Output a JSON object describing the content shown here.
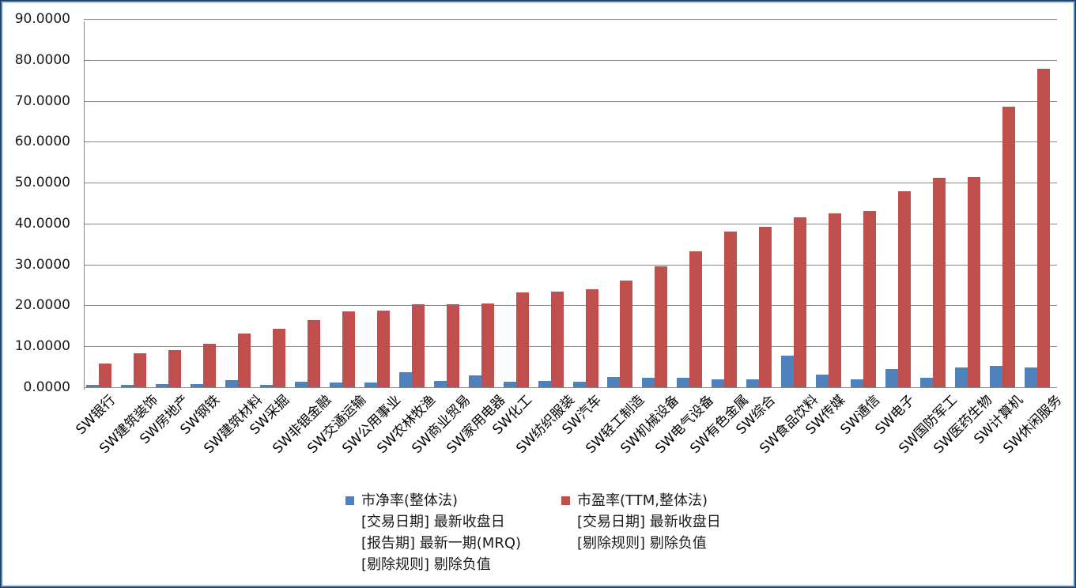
{
  "chart_data": {
    "type": "bar",
    "title": "",
    "xlabel": "",
    "ylabel": "",
    "ylim": [
      0,
      90
    ],
    "yticks": [
      "0.0000",
      "10.0000",
      "20.0000",
      "30.0000",
      "40.0000",
      "50.0000",
      "60.0000",
      "70.0000",
      "80.0000",
      "90.0000"
    ],
    "grid": true,
    "legend_position": "bottom",
    "categories": [
      "SW银行",
      "SW建筑装饰",
      "SW房地产",
      "SW钢铁",
      "SW建筑材料",
      "SW采掘",
      "SW非银金融",
      "SW交通运输",
      "SW公用事业",
      "SW农林牧渔",
      "SW商业贸易",
      "SW家用电器",
      "SW化工",
      "SW纺织服装",
      "SW汽车",
      "SW轻工制造",
      "SW机械设备",
      "SW电气设备",
      "SW有色金属",
      "SW综合",
      "SW食品饮料",
      "SW传媒",
      "SW通信",
      "SW电子",
      "SW国防军工",
      "SW医药生物",
      "SW计算机",
      "SW休闲服务"
    ],
    "series": [
      {
        "name": "市净率(整体法) [交易日期] 最新收盘日 [报告期] 最新一期(MRQ) [剔除规则] 剔除负值",
        "color": "#4F81BD",
        "values": [
          0.6,
          0.6,
          0.8,
          0.8,
          1.8,
          0.6,
          1.4,
          1.2,
          1.2,
          3.7,
          1.5,
          2.9,
          1.3,
          1.5,
          1.3,
          2.5,
          2.3,
          2.3,
          1.9,
          1.9,
          7.7,
          3.1,
          1.9,
          4.4,
          2.3,
          4.8,
          5.2,
          4.8
        ]
      },
      {
        "name": "市盈率(TTM,整体法) [交易日期] 最新收盘日 [剔除规则] 剔除负值",
        "color": "#C0504D",
        "values": [
          5.8,
          8.3,
          9.1,
          10.7,
          13.2,
          14.3,
          16.5,
          18.5,
          18.7,
          20.2,
          20.2,
          20.4,
          23.1,
          23.3,
          23.9,
          26.0,
          29.6,
          33.3,
          38.1,
          39.3,
          41.6,
          42.4,
          43.1,
          47.9,
          51.2,
          51.4,
          68.6,
          77.9
        ]
      }
    ]
  },
  "legend": {
    "pb": {
      "color": "#4F81BD",
      "lines": [
        "市净率(整体法)",
        "[交易日期] 最新收盘日",
        "[报告期] 最新一期(MRQ)",
        "[剔除规则] 剔除负值"
      ]
    },
    "pe": {
      "color": "#C0504D",
      "lines": [
        "市盈率(TTM,整体法)",
        "[交易日期] 最新收盘日",
        "[剔除规则] 剔除负值"
      ]
    }
  }
}
